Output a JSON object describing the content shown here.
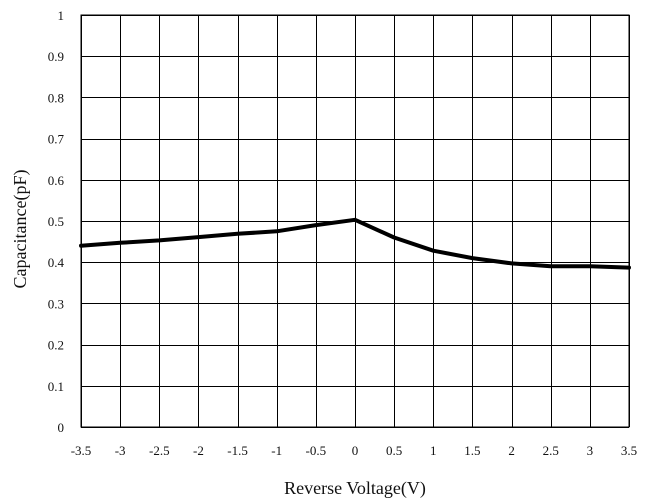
{
  "chart_data": {
    "type": "line",
    "title": "",
    "xlabel": "Reverse Voltage(V)",
    "ylabel": "Capacitance(pF)",
    "xlim": [
      -3.5,
      3.5
    ],
    "ylim": [
      0,
      1
    ],
    "x_ticks": [
      "-3.5",
      "-3",
      "-2.5",
      "-2",
      "-1.5",
      "-1",
      "-0.5",
      "0",
      "0.5",
      "1",
      "1.5",
      "2",
      "2.5",
      "3",
      "3.5"
    ],
    "y_ticks": [
      "0",
      "0.1",
      "0.2",
      "0.3",
      "0.4",
      "0.5",
      "0.6",
      "0.7",
      "0.8",
      "0.9",
      "1"
    ],
    "grid": true,
    "legend": "none",
    "series": [
      {
        "color": "#000000",
        "x": [
          -3.5,
          -3,
          -2.5,
          -2,
          -1.5,
          -1,
          -0.5,
          0,
          0.5,
          1,
          1.5,
          2,
          2.5,
          3,
          3.5
        ],
        "y": [
          0.44,
          0.447,
          0.453,
          0.461,
          0.469,
          0.475,
          0.49,
          0.503,
          0.46,
          0.428,
          0.41,
          0.397,
          0.39,
          0.39,
          0.387
        ]
      }
    ]
  }
}
